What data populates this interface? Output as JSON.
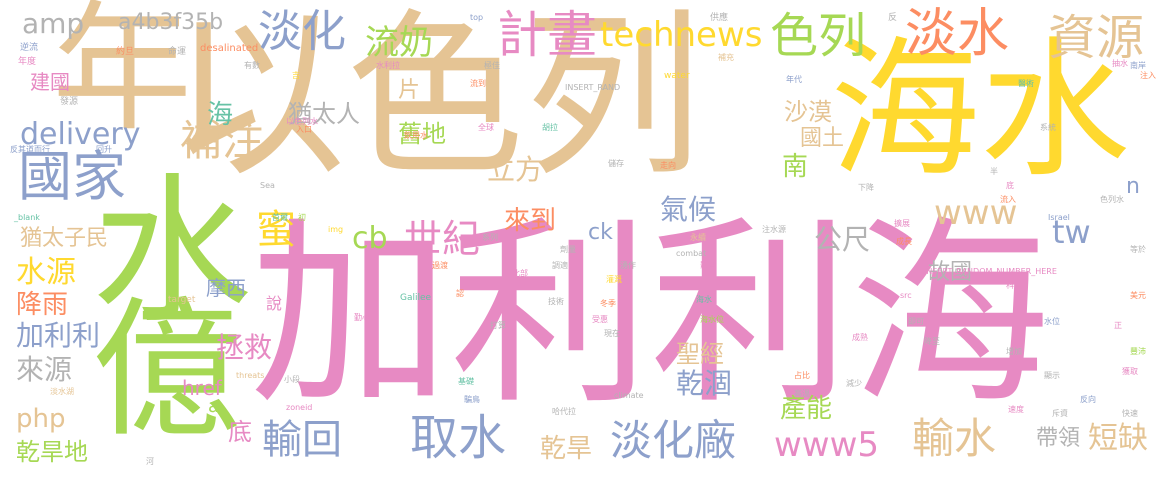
{
  "palette": {
    "pink": "#e78ac3",
    "tan": "#e5c494",
    "yellow": "#ffd92f",
    "green": "#a6d854",
    "blue": "#8da0cb",
    "orange": "#fc8d62",
    "teal": "#66c2a5",
    "gray": "#b3b3b3"
  },
  "words": {
    "jialilihai": "加利利海",
    "yiselie": "以色列",
    "haishui": "海水",
    "shui": "水",
    "nian": "年",
    "yi": "億",
    "guojia": "國家",
    "danshui": "淡水",
    "ziyuan": "資源",
    "jihua": "計畫",
    "selie": "色列",
    "danhua": "淡化",
    "liunai": "流奶",
    "technews": "technews",
    "amp": "amp",
    "hash": "a4b3f35b",
    "buzhu": "補注",
    "delivery": "delivery",
    "hai": "海",
    "youtairen": "猶太人",
    "pian": "片",
    "shamo": "沙漠",
    "guotu": "國土",
    "lifang": "立方",
    "jiudi": "舊地",
    "nan": "南",
    "qihou": "氣候",
    "www": "www",
    "mi": "蜜",
    "cb": "cb",
    "shiji": "世紀",
    "laidao": "來到",
    "gongchi": "公尺",
    "tw": "tw",
    "youtaizimin": "猶太子民",
    "shuiyuan": "水源",
    "jiangyu": "降雨",
    "jialili": "加利利",
    "laiyuan": "來源",
    "moxi": "摩西",
    "zhengjiu": "拯救",
    "guguo": "故國",
    "ck": "ck",
    "php": "php",
    "href": "href",
    "a": "a",
    "di": "底",
    "shuo": "說",
    "shengjing": "聖經",
    "ganhe": "乾涸",
    "channeng": "產能",
    "n": "n",
    "daining": "帶領",
    "duanque": "短缺",
    "shushui": "輸水",
    "shuhui": "輸回",
    "qushui": "取水",
    "danhuachang": "淡化廠",
    "ganhan": "乾旱",
    "www5": "www5",
    "ganhandi": "乾旱地",
    "jianguo": "建國",
    "small": [
      "逆流",
      "年度",
      "發源",
      "反其道而行",
      "回升",
      "約旦",
      "命運",
      "desalinated",
      "top",
      "供應",
      "反",
      "南岸",
      "水利拉",
      "有數",
      "吉",
      "流到",
      "INSERT_RAND",
      "補充",
      "抽水",
      "注入",
      "water",
      "年代",
      "醫術",
      "全球",
      "以色列水",
      "入口",
      "飲用水",
      "胡拉",
      "儲存",
      "走向",
      "半",
      "系統",
      "Sea",
      "下降",
      "底",
      "色列水",
      "_blank",
      "初",
      "首爾",
      "img",
      "注水源",
      "永續",
      "Israel",
      "流入",
      "擴展",
      "成長",
      "系列",
      "劑量",
      "影響",
      "北部",
      "INSERT_RANDOM_NUMBER_HERE",
      "等於",
      "過渡",
      "調適",
      "湧作",
      "src",
      "科技",
      "水位",
      "正",
      "美元",
      "認",
      "灌溉",
      "冬季",
      "即可",
      "勤心",
      "target",
      "Galilee",
      "技術",
      "打算",
      "受惠",
      "海水位",
      "現在",
      "降至",
      "成熟",
      "threats",
      "海水",
      "增加",
      "豐沛",
      "獲取",
      "基礎",
      "小段",
      "顯示",
      "占比",
      "減少",
      "淡水湖",
      "climate",
      "高溫",
      "騙鳥",
      "反向",
      "zoneid",
      "哈代拉",
      "斥資",
      "快速",
      "河",
      "速度",
      "combat",
      "極佳",
      "avw",
      "pixabay"
    ]
  }
}
